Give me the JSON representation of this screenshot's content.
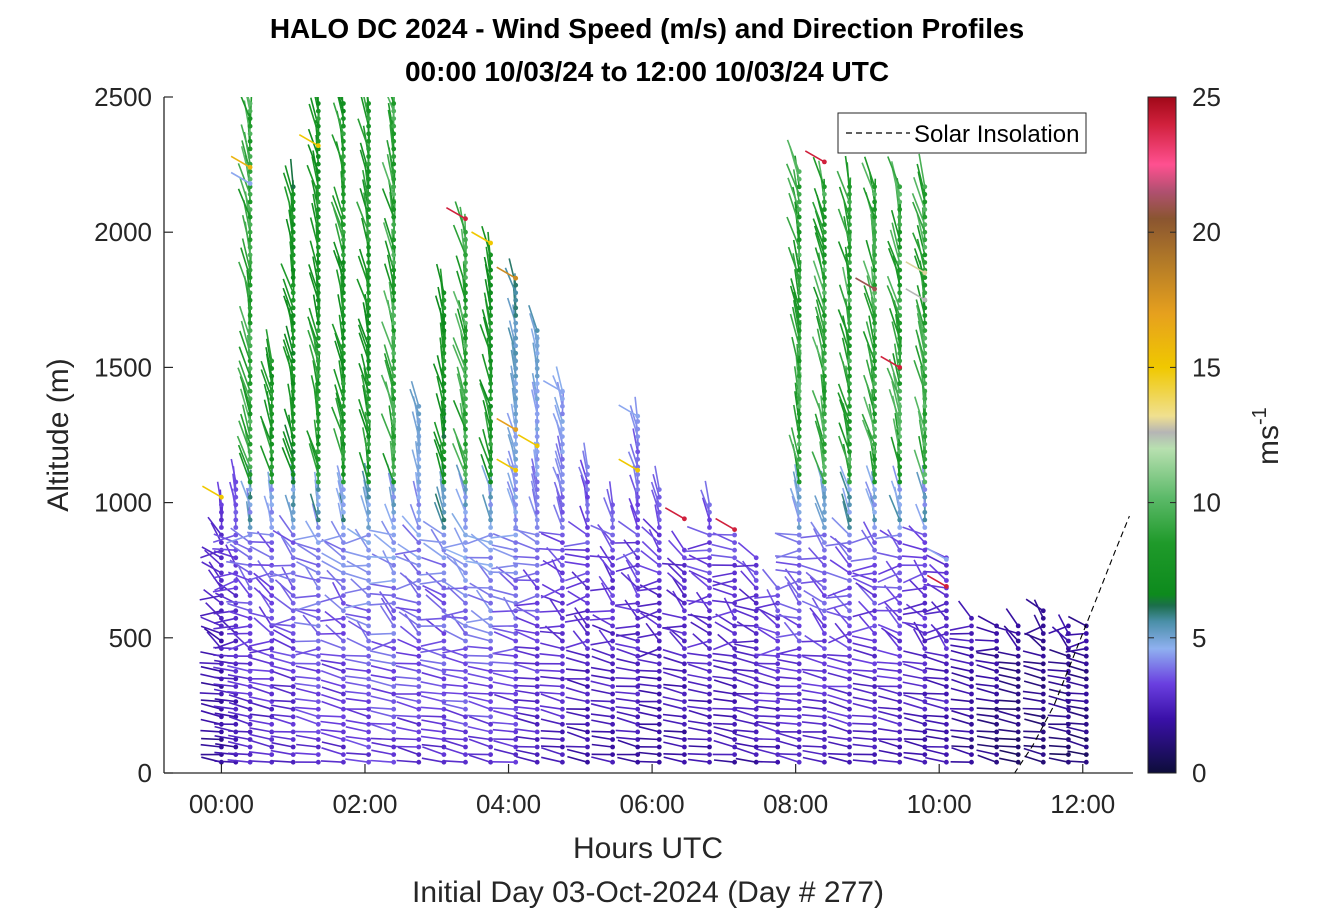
{
  "chart_data": {
    "type": "wind barb profile",
    "title_line1": "HALO DC 2024 - Wind Speed (m/s) and Direction Profiles",
    "title_line2": "00:00 10/03/24 to 12:00 10/03/24  UTC",
    "xlabel": "Hours UTC",
    "xlabel2": "Initial Day 03-Oct-2024 (Day # 277)",
    "ylabel": "Altitude (m)",
    "xlim": [
      -0.8,
      12.7
    ],
    "ylim": [
      0,
      2500
    ],
    "x_ticks": [
      0,
      2,
      4,
      6,
      8,
      10,
      12
    ],
    "x_tick_labels": [
      "00:00",
      "02:00",
      "04:00",
      "06:00",
      "08:00",
      "10:00",
      "12:00"
    ],
    "y_ticks": [
      0,
      500,
      1000,
      1500,
      2000,
      2500
    ],
    "y_tick_labels": [
      "0",
      "500",
      "1000",
      "1500",
      "2000",
      "2500"
    ],
    "colorbar": {
      "label": "ms",
      "label_exponent": "-1",
      "range": [
        0,
        25
      ],
      "ticks": [
        0,
        5,
        10,
        15,
        20,
        25
      ],
      "tick_labels": [
        "0",
        "5",
        "10",
        "15",
        "20",
        "25"
      ],
      "stops": [
        {
          "v": 0,
          "color": "#0d0d3a"
        },
        {
          "v": 2,
          "color": "#3a10a8"
        },
        {
          "v": 3.3,
          "color": "#6a3fe0"
        },
        {
          "v": 4.6,
          "color": "#8fb0f0"
        },
        {
          "v": 5.6,
          "color": "#4a8fa8"
        },
        {
          "v": 6.2,
          "color": "#1b6e4a"
        },
        {
          "v": 6.6,
          "color": "#0d8a1d"
        },
        {
          "v": 8.5,
          "color": "#1f9a2a"
        },
        {
          "v": 10.2,
          "color": "#5dba6a"
        },
        {
          "v": 12.0,
          "color": "#b8e0b0"
        },
        {
          "v": 12.6,
          "color": "#b5b5b5"
        },
        {
          "v": 13.2,
          "color": "#f0e090"
        },
        {
          "v": 15.0,
          "color": "#f0c800"
        },
        {
          "v": 17.0,
          "color": "#e6a01e"
        },
        {
          "v": 19.0,
          "color": "#b07828"
        },
        {
          "v": 20.5,
          "color": "#8a5530"
        },
        {
          "v": 21.5,
          "color": "#b05070"
        },
        {
          "v": 22.5,
          "color": "#ff5090"
        },
        {
          "v": 24.0,
          "color": "#d0203c"
        },
        {
          "v": 25.0,
          "color": "#a00818"
        }
      ]
    },
    "legend": {
      "entries": [
        "Solar Insolation"
      ],
      "placement": "top-right"
    },
    "series": [
      {
        "name": "Solar Insolation",
        "style": "dashed",
        "color": "#000000",
        "x": [
          -0.8,
          11.05,
          11.3,
          11.6,
          11.9,
          12.2,
          12.45,
          12.65
        ],
        "y": [
          0,
          0,
          100,
          250,
          450,
          650,
          820,
          950
        ]
      },
      {
        "name": "wind profiles",
        "style": "barbs",
        "columns": [
          {
            "x": 0.0,
            "top": 1000,
            "base_speed": 1.5
          },
          {
            "x": 0.2,
            "top": 1100,
            "base_speed": 2.0,
            "stray_top": 2500,
            "stray_speed": 9
          },
          {
            "x": 0.4,
            "top": 2500,
            "base_speed": 2.5,
            "upper_speed": 9
          },
          {
            "x": 0.7,
            "top": 1550,
            "base_speed": 2.5,
            "upper_speed": 8
          },
          {
            "x": 1.0,
            "top": 2180,
            "base_speed": 2.5,
            "upper_speed": 7.5
          },
          {
            "x": 1.35,
            "top": 2480,
            "base_speed": 2.8,
            "upper_speed": 8
          },
          {
            "x": 1.7,
            "top": 2480,
            "base_speed": 2.8,
            "upper_speed": 8
          },
          {
            "x": 2.05,
            "top": 2500,
            "base_speed": 3.0,
            "upper_speed": 8
          },
          {
            "x": 2.4,
            "top": 2500,
            "base_speed": 3.0,
            "upper_speed": 9
          },
          {
            "x": 2.75,
            "top": 1380,
            "base_speed": 2.8
          },
          {
            "x": 3.1,
            "top": 1790,
            "base_speed": 2.8,
            "upper_speed": 7.5
          },
          {
            "x": 3.4,
            "top": 2000,
            "base_speed": 3.0,
            "upper_speed": 9
          },
          {
            "x": 3.75,
            "top": 1930,
            "base_speed": 3.0,
            "upper_speed": 8
          },
          {
            "x": 4.1,
            "top": 1820,
            "base_speed": 2.8
          },
          {
            "x": 4.4,
            "top": 1650,
            "base_speed": 2.5
          },
          {
            "x": 4.75,
            "top": 1420,
            "base_speed": 2.3
          },
          {
            "x": 5.1,
            "top": 1150,
            "base_speed": 2.0
          },
          {
            "x": 5.45,
            "top": 1000,
            "base_speed": 2.0
          },
          {
            "x": 5.8,
            "top": 1320,
            "base_speed": 2.0
          },
          {
            "x": 6.1,
            "top": 1050,
            "base_speed": 1.8
          },
          {
            "x": 6.45,
            "top": 850,
            "base_speed": 1.8
          },
          {
            "x": 6.8,
            "top": 1000,
            "base_speed": 2.0
          },
          {
            "x": 7.15,
            "top": 900,
            "base_speed": 2.0
          },
          {
            "x": 7.45,
            "top": 800,
            "base_speed": 2.0
          },
          {
            "x": 7.75,
            "top": 700,
            "base_speed": 2.3
          },
          {
            "x": 8.05,
            "top": 2250,
            "base_speed": 2.5,
            "upper_speed": 9
          },
          {
            "x": 8.4,
            "top": 2180,
            "base_speed": 2.5,
            "upper_speed": 9
          },
          {
            "x": 8.75,
            "top": 2180,
            "base_speed": 2.5,
            "upper_speed": 9
          },
          {
            "x": 9.1,
            "top": 2180,
            "base_speed": 2.3,
            "upper_speed": 9
          },
          {
            "x": 9.45,
            "top": 2180,
            "base_speed": 2.3,
            "upper_speed": 9
          },
          {
            "x": 9.8,
            "top": 2180,
            "base_speed": 2.0,
            "upper_speed": 9
          },
          {
            "x": 10.1,
            "top": 800,
            "base_speed": 2.0
          },
          {
            "x": 10.45,
            "top": 590,
            "base_speed": 1.5
          },
          {
            "x": 10.8,
            "top": 550,
            "base_speed": 1.2
          },
          {
            "x": 11.1,
            "top": 560,
            "base_speed": 1.0
          },
          {
            "x": 11.45,
            "top": 600,
            "base_speed": 1.0
          },
          {
            "x": 11.8,
            "top": 550,
            "base_speed": 1.0
          },
          {
            "x": 12.05,
            "top": 550,
            "base_speed": 1.0
          }
        ],
        "level_spacing_m": 28,
        "lowest_level_m": 40,
        "highlights": [
          {
            "x": 0.0,
            "alt": 1020,
            "speed": 15
          },
          {
            "x": 0.4,
            "alt": 2240,
            "speed": 16
          },
          {
            "x": 0.4,
            "alt": 2180,
            "speed": 4.5
          },
          {
            "x": 1.35,
            "alt": 2320,
            "speed": 15
          },
          {
            "x": 3.4,
            "alt": 2050,
            "speed": 24
          },
          {
            "x": 3.75,
            "alt": 1960,
            "speed": 15
          },
          {
            "x": 4.1,
            "alt": 1830,
            "speed": 18
          },
          {
            "x": 4.1,
            "alt": 1270,
            "speed": 17
          },
          {
            "x": 4.4,
            "alt": 1210,
            "speed": 15
          },
          {
            "x": 4.1,
            "alt": 1120,
            "speed": 15
          },
          {
            "x": 5.8,
            "alt": 1120,
            "speed": 15
          },
          {
            "x": 4.75,
            "alt": 1410,
            "speed": 4.5
          },
          {
            "x": 5.8,
            "alt": 1320,
            "speed": 4.5
          },
          {
            "x": 6.45,
            "alt": 940,
            "speed": 24
          },
          {
            "x": 7.15,
            "alt": 900,
            "speed": 24
          },
          {
            "x": 8.4,
            "alt": 2260,
            "speed": 24
          },
          {
            "x": 9.1,
            "alt": 1790,
            "speed": 21
          },
          {
            "x": 9.45,
            "alt": 1500,
            "speed": 24
          },
          {
            "x": 9.8,
            "alt": 1850,
            "speed": 13
          },
          {
            "x": 9.8,
            "alt": 1750,
            "speed": 12.6
          },
          {
            "x": 10.1,
            "alt": 690,
            "speed": 24
          },
          {
            "x": 10.1,
            "alt": 790,
            "speed": 4.5
          }
        ]
      }
    ],
    "grid": false
  }
}
